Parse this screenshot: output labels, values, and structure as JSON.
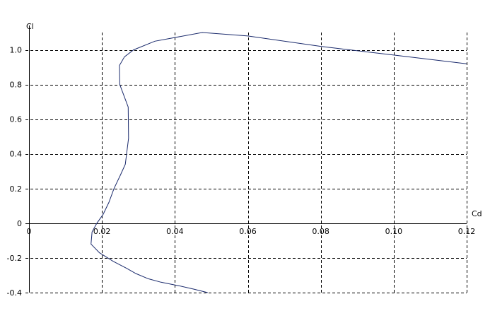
{
  "chart_data": {
    "type": "line",
    "xlabel": "Cd",
    "ylabel": "Cl",
    "xlim": [
      0,
      0.12
    ],
    "ylim": [
      -0.4,
      1.1
    ],
    "x_ticks": [
      0,
      0.02,
      0.04,
      0.06,
      0.08,
      0.1,
      0.12
    ],
    "x_tick_labels": [
      "0",
      "0.02",
      "0.04",
      "0.06",
      "0.08",
      "0.10",
      "0.12"
    ],
    "y_ticks": [
      -0.4,
      -0.2,
      0,
      0.2,
      0.4,
      0.6,
      0.8,
      1.0
    ],
    "y_tick_labels": [
      "-0.4",
      "-0.2",
      "0",
      "0.2",
      "0.4",
      "0.6",
      "0.8",
      "1.0"
    ],
    "grid": true,
    "legend": "none",
    "series": [
      {
        "color": "#1a2a6c",
        "x": [
          0.049,
          0.0452,
          0.041,
          0.0362,
          0.0327,
          0.0293,
          0.0268,
          0.0231,
          0.0193,
          0.017,
          0.0173,
          0.0186,
          0.0203,
          0.0219,
          0.0233,
          0.0249,
          0.0264,
          0.0273,
          0.0272,
          0.0249,
          0.0248,
          0.0262,
          0.0287,
          0.0345,
          0.0475,
          0.06,
          0.08,
          0.1,
          0.12
        ],
        "y": [
          -0.4,
          -0.38,
          -0.36,
          -0.34,
          -0.32,
          -0.29,
          -0.26,
          -0.22,
          -0.17,
          -0.12,
          -0.05,
          0.0,
          0.05,
          0.12,
          0.2,
          0.27,
          0.34,
          0.49,
          0.67,
          0.8,
          0.91,
          0.96,
          1.0,
          1.05,
          1.1,
          1.08,
          1.02,
          0.97,
          0.92
        ]
      }
    ]
  }
}
